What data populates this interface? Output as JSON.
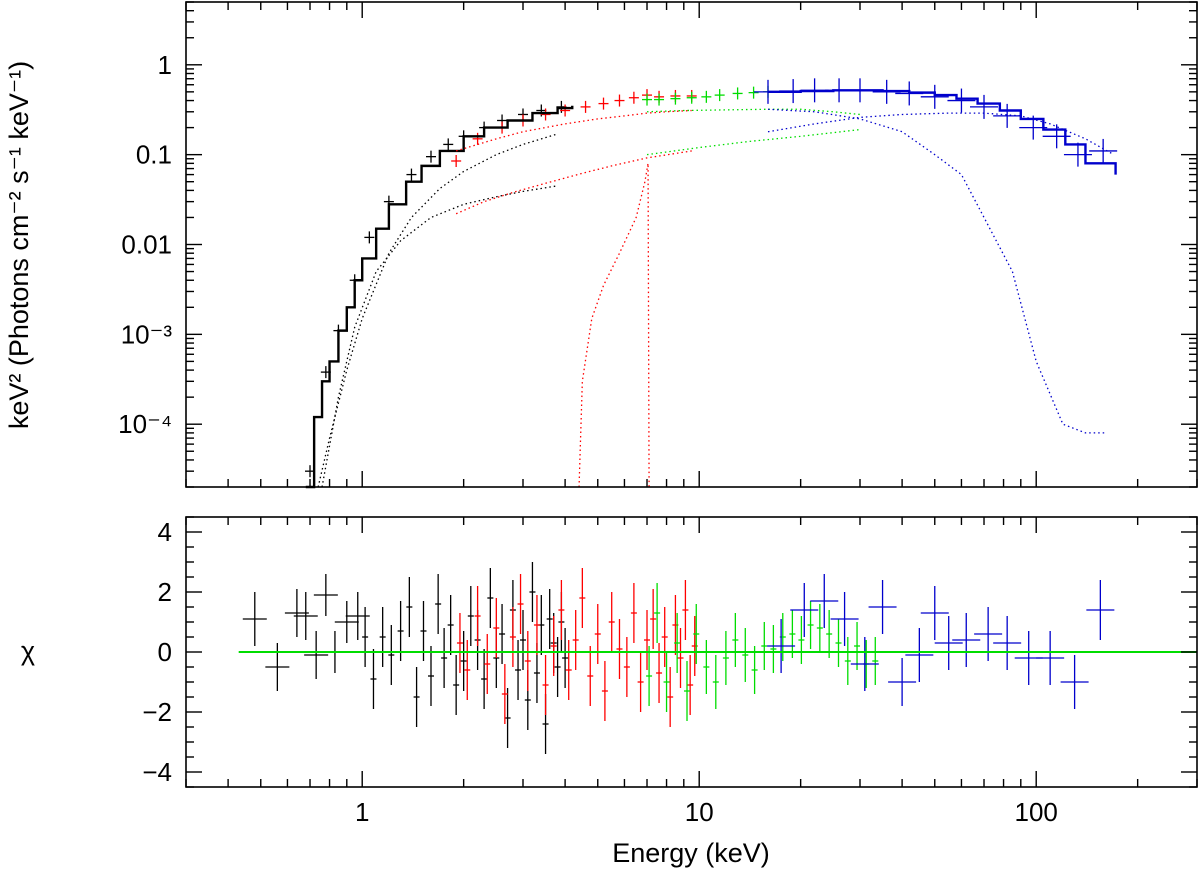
{
  "chart_data": [
    {
      "panel": "top",
      "type": "scatter",
      "xscale": "log",
      "yscale": "log",
      "xlim": [
        0.3,
        300
      ],
      "ylim": [
        2e-05,
        5
      ],
      "ylabel": "keV² (Photons cm⁻² s⁻¹ keV⁻¹)",
      "xlabel": "",
      "yticks": [
        {
          "value": 1,
          "label": "1"
        },
        {
          "value": 0.1,
          "label": "0.1"
        },
        {
          "value": 0.01,
          "label": "0.01"
        },
        {
          "value": 0.001,
          "label": "10⁻³"
        },
        {
          "value": 0.0001,
          "label": "10⁻⁴"
        }
      ],
      "series": [
        {
          "name": "data-black",
          "color": "#000000",
          "style": "errorbars",
          "x": [
            0.7,
            0.78,
            0.85,
            0.95,
            1.05,
            1.2,
            1.4,
            1.6,
            1.8,
            2.0,
            2.3,
            2.6,
            3.0,
            3.4,
            3.9
          ],
          "y": [
            3e-05,
            0.00038,
            0.0011,
            0.004,
            0.012,
            0.03,
            0.06,
            0.095,
            0.13,
            0.16,
            0.2,
            0.24,
            0.28,
            0.31,
            0.34
          ]
        },
        {
          "name": "data-red",
          "color": "#ff0000",
          "style": "errorbars",
          "x": [
            1.9,
            2.2,
            2.6,
            3.0,
            3.5,
            4.0,
            4.6,
            5.2,
            5.8,
            6.4,
            7.0,
            7.6,
            8.5,
            9.5
          ],
          "y": [
            0.085,
            0.15,
            0.2,
            0.24,
            0.28,
            0.31,
            0.34,
            0.37,
            0.4,
            0.43,
            0.46,
            0.44,
            0.45,
            0.45
          ]
        },
        {
          "name": "data-green",
          "color": "#00dd00",
          "style": "errorbars",
          "x": [
            7.0,
            7.6,
            8.5,
            9.5,
            10.5,
            11.5,
            13,
            14.5,
            16
          ],
          "y": [
            0.41,
            0.41,
            0.42,
            0.43,
            0.44,
            0.46,
            0.48,
            0.49,
            0.5
          ]
        },
        {
          "name": "data-blue",
          "color": "#0000cc",
          "style": "errorbars",
          "x": [
            16,
            19,
            22,
            26,
            30,
            36,
            42,
            50,
            60,
            70,
            82,
            98,
            115,
            133,
            158
          ],
          "y": [
            0.5,
            0.51,
            0.52,
            0.52,
            0.52,
            0.5,
            0.48,
            0.44,
            0.4,
            0.34,
            0.27,
            0.2,
            0.16,
            0.1,
            0.11
          ]
        },
        {
          "name": "model-total",
          "color": "#000000",
          "style": "step",
          "x": [
            0.68,
            0.72,
            0.76,
            0.8,
            0.85,
            0.9,
            0.95,
            1.0,
            1.1,
            1.2,
            1.35,
            1.5,
            1.7,
            2.0,
            2.3,
            2.7,
            3.2,
            3.8,
            4.2
          ],
          "y": [
            2e-05,
            0.00012,
            0.0003,
            0.0005,
            0.0011,
            0.002,
            0.004,
            0.007,
            0.015,
            0.028,
            0.05,
            0.075,
            0.11,
            0.16,
            0.2,
            0.24,
            0.29,
            0.33,
            0.35
          ]
        },
        {
          "name": "model-total-blue",
          "color": "#0000cc",
          "style": "step",
          "x": [
            16,
            20,
            25,
            30,
            35,
            42,
            50,
            58,
            67,
            78,
            90,
            105,
            122,
            140,
            172
          ],
          "y": [
            0.5,
            0.51,
            0.52,
            0.52,
            0.51,
            0.49,
            0.46,
            0.42,
            0.37,
            0.31,
            0.25,
            0.19,
            0.13,
            0.08,
            0.06
          ]
        },
        {
          "name": "component-dotted-black-1",
          "color": "#000000",
          "style": "dotted",
          "x": [
            0.74,
            0.8,
            0.9,
            1.0,
            1.2,
            1.4,
            1.7,
            2.0,
            2.5,
            3.0,
            3.8
          ],
          "y": [
            2e-05,
            7e-05,
            0.0004,
            0.0015,
            0.008,
            0.02,
            0.042,
            0.065,
            0.1,
            0.13,
            0.17
          ]
        },
        {
          "name": "component-dotted-black-2",
          "color": "#000000",
          "style": "dotted",
          "x": [
            0.76,
            0.85,
            0.95,
            1.1,
            1.3,
            1.6,
            2.0,
            2.5,
            3.0,
            3.8
          ],
          "y": [
            2e-05,
            0.0002,
            0.0012,
            0.005,
            0.011,
            0.02,
            0.028,
            0.034,
            0.039,
            0.045
          ]
        },
        {
          "name": "component-dotted-red-cont",
          "color": "#ff0000",
          "style": "dotted",
          "x": [
            1.9,
            2.5,
            3.0,
            4.0,
            5.0,
            6.0,
            7.0,
            8.0,
            9.5
          ],
          "y": [
            0.11,
            0.15,
            0.18,
            0.22,
            0.25,
            0.27,
            0.29,
            0.3,
            0.31
          ]
        },
        {
          "name": "component-dotted-red-low",
          "color": "#ff0000",
          "style": "dotted",
          "x": [
            1.9,
            2.3,
            2.8,
            3.5,
            4.5,
            5.5,
            7.0,
            9.5
          ],
          "y": [
            0.022,
            0.03,
            0.038,
            0.048,
            0.062,
            0.075,
            0.092,
            0.11
          ]
        },
        {
          "name": "component-dotted-red-line",
          "color": "#ff0000",
          "style": "dotted",
          "x": [
            4.4,
            4.5,
            4.8,
            5.2,
            5.8,
            6.5,
            6.9,
            7.05,
            7.1
          ],
          "y": [
            2e-05,
            0.0003,
            0.0015,
            0.0035,
            0.008,
            0.02,
            0.05,
            0.08,
            2e-05
          ]
        },
        {
          "name": "component-dotted-green-cont",
          "color": "#00dd00",
          "style": "dotted",
          "x": [
            7.0,
            9.0,
            12,
            16,
            20,
            25,
            30
          ],
          "y": [
            0.3,
            0.31,
            0.315,
            0.32,
            0.32,
            0.3,
            0.28
          ]
        },
        {
          "name": "component-dotted-green-low",
          "color": "#00dd00",
          "style": "dotted",
          "x": [
            7.0,
            10,
            14,
            20,
            30
          ],
          "y": [
            0.1,
            0.12,
            0.14,
            0.16,
            0.19
          ]
        },
        {
          "name": "component-dotted-blue-1",
          "color": "#0000cc",
          "style": "dotted",
          "x": [
            16,
            22,
            30,
            40,
            50,
            60,
            70,
            85,
            100,
            120,
            140,
            160
          ],
          "y": [
            0.32,
            0.3,
            0.25,
            0.18,
            0.1,
            0.06,
            0.02,
            0.005,
            0.0005,
            0.0001,
            8e-05,
            8e-05
          ]
        },
        {
          "name": "component-dotted-blue-2",
          "color": "#0000cc",
          "style": "dotted",
          "x": [
            16,
            22,
            30,
            40,
            55,
            70,
            90,
            110,
            140,
            170
          ],
          "y": [
            0.18,
            0.22,
            0.26,
            0.28,
            0.29,
            0.29,
            0.27,
            0.22,
            0.15,
            0.1
          ]
        }
      ]
    },
    {
      "panel": "bottom",
      "type": "scatter",
      "xscale": "log",
      "yscale": "linear",
      "xlim": [
        0.3,
        300
      ],
      "ylim": [
        -4.5,
        4.5
      ],
      "xlabel": "Energy (keV)",
      "ylabel": "χ",
      "xticks": [
        {
          "value": 1,
          "label": "1"
        },
        {
          "value": 10,
          "label": "10"
        },
        {
          "value": 100,
          "label": "100"
        }
      ],
      "yticks": [
        {
          "value": 4,
          "label": "4"
        },
        {
          "value": 2,
          "label": "2"
        },
        {
          "value": 0,
          "label": "0"
        },
        {
          "value": -2,
          "label": "−2"
        },
        {
          "value": -4,
          "label": "−4"
        }
      ],
      "zero_line": {
        "y": 0,
        "color": "#00dd00"
      },
      "series": [
        {
          "name": "resid-black",
          "color": "#000000",
          "x": [
            0.48,
            0.56,
            0.64,
            0.68,
            0.73,
            0.78,
            0.83,
            0.9,
            0.97,
            1.02,
            1.08,
            1.15,
            1.22,
            1.3,
            1.38,
            1.45,
            1.52,
            1.6,
            1.68,
            1.75,
            1.83,
            1.9,
            2.0,
            2.1,
            2.2,
            2.3,
            2.4,
            2.5,
            2.6,
            2.7,
            2.8,
            2.9,
            3.0,
            3.1,
            3.2,
            3.3,
            3.4,
            3.5,
            3.6,
            3.7,
            3.8,
            3.9,
            4.0
          ],
          "y": [
            1.1,
            -0.5,
            1.3,
            1.2,
            -0.1,
            1.9,
            0.0,
            1.0,
            1.2,
            0.5,
            -0.9,
            0.5,
            -0.1,
            0.7,
            1.5,
            -1.5,
            0.7,
            -0.8,
            1.6,
            -0.2,
            0.9,
            -1.1,
            -0.3,
            1.2,
            0.4,
            -0.9,
            1.8,
            -0.2,
            0.6,
            -2.2,
            1.4,
            -0.6,
            0.4,
            -1.6,
            2.0,
            -0.7,
            0.9,
            -2.4,
            1.1,
            0.3,
            -0.5,
            1.0,
            -0.2
          ],
          "err": [
            0.9,
            0.8,
            0.8,
            0.8,
            0.8,
            0.7,
            0.7,
            0.7,
            0.8,
            1.0,
            1.0,
            1.0,
            1.0,
            1.0,
            1.0,
            1.0,
            1.0,
            1.0,
            1.0,
            1.0,
            1.0,
            1.0,
            1.0,
            1.0,
            1.0,
            1.0,
            1.0,
            1.0,
            1.0,
            1.0,
            1.0,
            1.0,
            1.0,
            1.0,
            1.0,
            1.0,
            1.0,
            1.0,
            1.0,
            1.0,
            1.0,
            1.0,
            1.0
          ]
        },
        {
          "name": "resid-red",
          "color": "#ff0000",
          "x": [
            1.95,
            2.05,
            2.2,
            2.35,
            2.5,
            2.65,
            2.8,
            2.95,
            3.1,
            3.3,
            3.5,
            3.7,
            3.9,
            4.1,
            4.3,
            4.5,
            4.75,
            5.0,
            5.25,
            5.5,
            5.8,
            6.1,
            6.4,
            6.7,
            7.0,
            7.3,
            7.6,
            7.9,
            8.2,
            8.5,
            8.8,
            9.1,
            9.4,
            9.7
          ],
          "y": [
            0.3,
            -0.6,
            1.2,
            -0.4,
            0.8,
            -1.4,
            0.5,
            1.6,
            -0.3,
            0.9,
            -1.1,
            0.2,
            1.4,
            -0.6,
            0.4,
            1.8,
            -0.8,
            0.6,
            -1.3,
            1.0,
            0.1,
            -0.5,
            1.3,
            -1.0,
            0.4,
            1.1,
            -0.7,
            0.5,
            -1.5,
            0.9,
            -0.2,
            1.4,
            -1.1,
            0.2
          ],
          "err": [
            1.0,
            1.0,
            1.0,
            1.0,
            1.0,
            1.0,
            1.0,
            1.0,
            1.0,
            1.0,
            1.0,
            1.0,
            1.0,
            1.0,
            1.0,
            1.0,
            1.0,
            1.0,
            1.0,
            1.0,
            1.0,
            1.0,
            1.0,
            1.0,
            1.0,
            1.0,
            1.0,
            1.0,
            1.0,
            1.0,
            1.0,
            1.0,
            1.0,
            1.0
          ]
        },
        {
          "name": "resid-green",
          "color": "#00dd00",
          "x": [
            7.1,
            7.5,
            8.0,
            8.6,
            9.2,
            9.8,
            10.5,
            11.2,
            12.0,
            12.8,
            13.7,
            14.6,
            15.6,
            16.6,
            17.7,
            18.9,
            20.1,
            21.4,
            22.8,
            24.3,
            25.9,
            27.6,
            29.4,
            31.3,
            33.3
          ],
          "y": [
            -0.8,
            1.3,
            -1.0,
            0.3,
            -1.3,
            0.6,
            -0.5,
            -1.0,
            -0.2,
            0.4,
            -0.1,
            -0.6,
            0.2,
            0.1,
            0.5,
            0.6,
            0.4,
            0.9,
            0.8,
            0.6,
            0.3,
            -0.3,
            0.2,
            -0.4,
            -0.3
          ],
          "err": [
            1.0,
            1.0,
            1.0,
            1.0,
            1.0,
            1.0,
            0.9,
            0.9,
            0.9,
            0.9,
            0.9,
            0.8,
            0.8,
            0.8,
            0.8,
            0.8,
            0.8,
            0.8,
            0.8,
            0.8,
            0.8,
            0.8,
            0.8,
            0.8,
            0.8
          ]
        },
        {
          "name": "resid-blue",
          "color": "#0000cc",
          "x": [
            17.5,
            20.5,
            23.5,
            27,
            31,
            35,
            40,
            45,
            50,
            55,
            62,
            72,
            82,
            95,
            110,
            130,
            155
          ],
          "y": [
            0.2,
            1.4,
            1.7,
            1.1,
            -0.4,
            1.5,
            -1.0,
            -0.1,
            1.3,
            0.3,
            0.4,
            0.6,
            0.3,
            -0.2,
            -0.2,
            -1.0,
            1.4
          ],
          "err": [
            0.9,
            0.9,
            0.9,
            0.9,
            0.9,
            0.9,
            0.8,
            0.9,
            0.9,
            0.9,
            0.9,
            0.9,
            0.9,
            0.9,
            0.9,
            0.9,
            1.0
          ]
        }
      ]
    }
  ]
}
